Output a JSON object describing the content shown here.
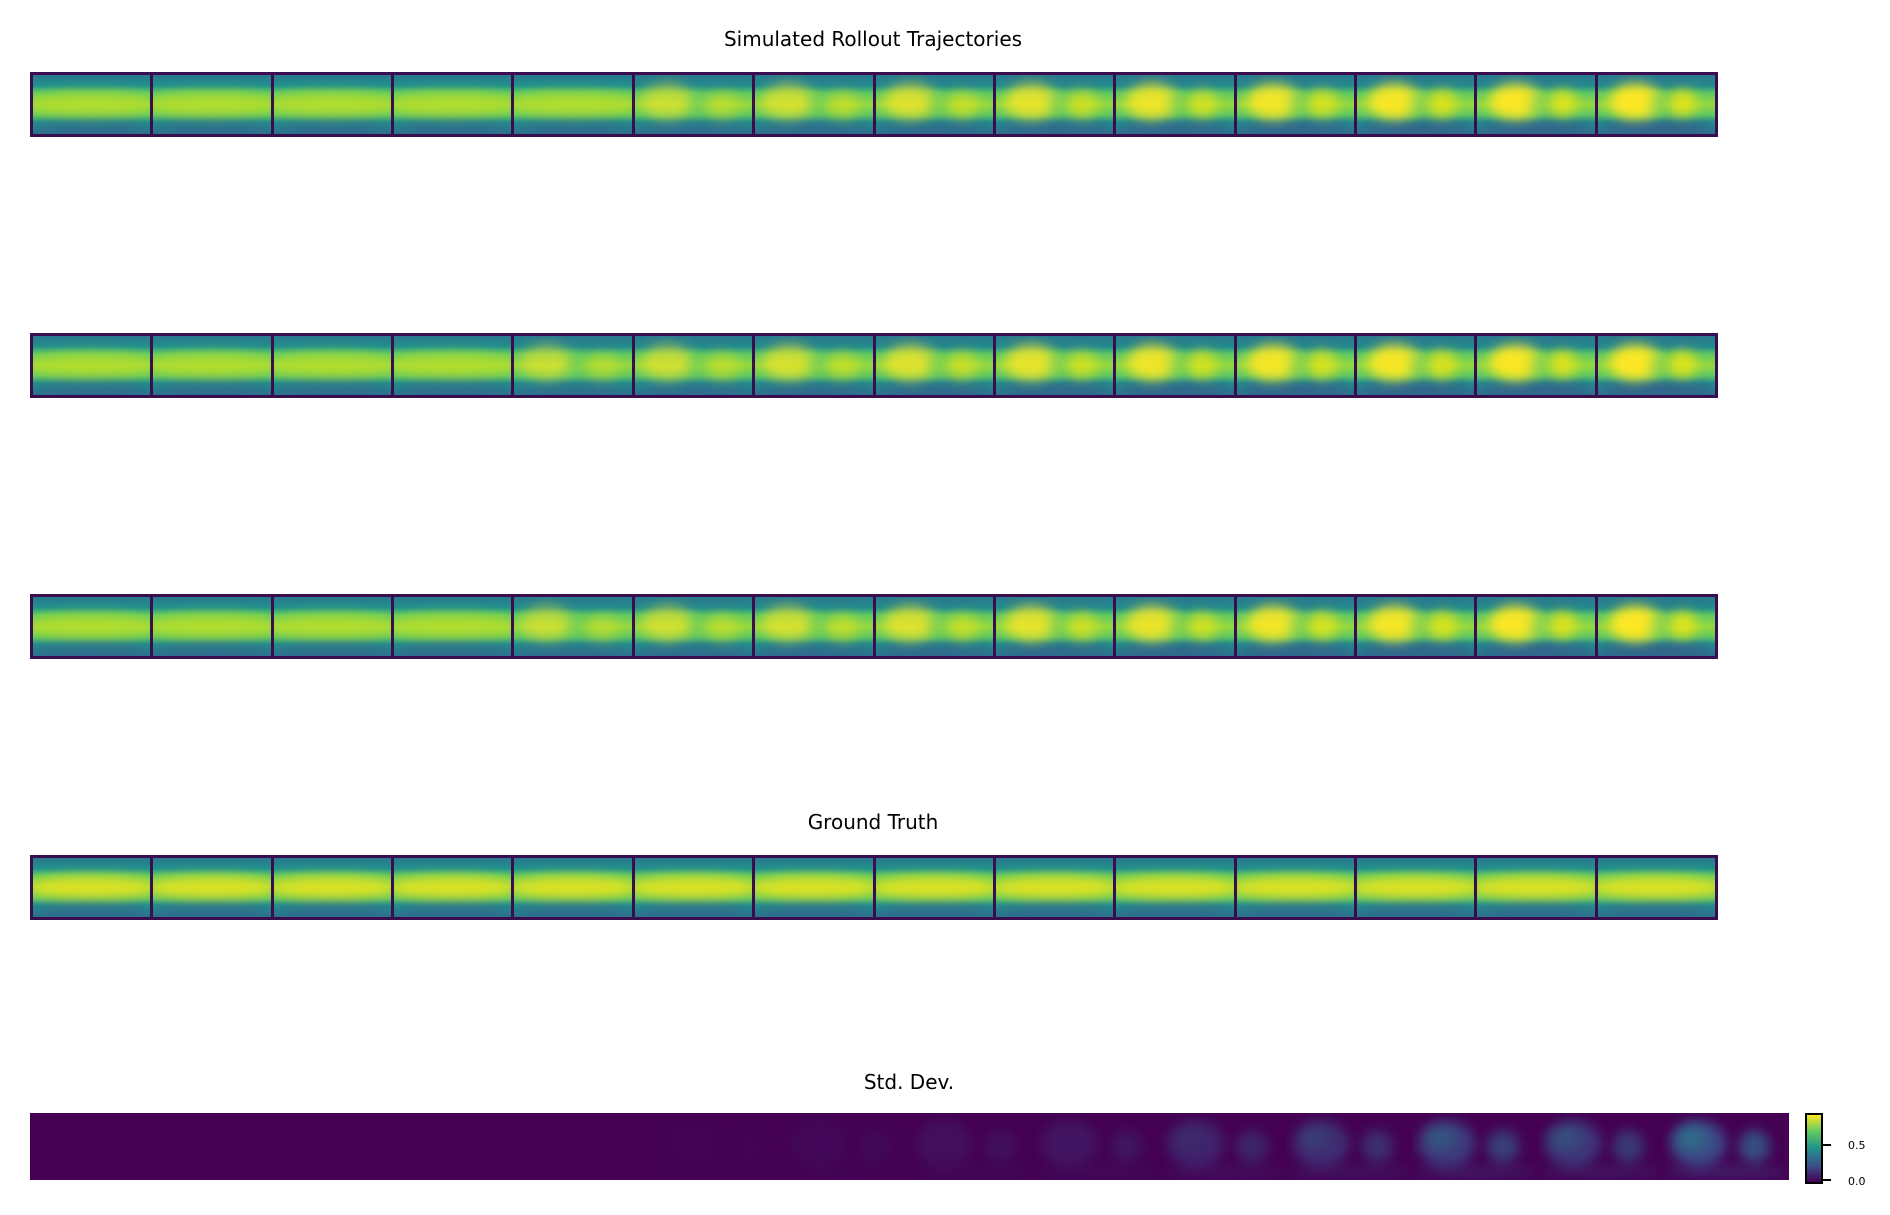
{
  "chart_data": {
    "type": "heatmap",
    "colormap": "viridis",
    "frames_per_row": 14,
    "panels": [
      {
        "title": "Simulated Rollout Trajectories",
        "kind": "rollout",
        "divergence": [
          0,
          0,
          0,
          0,
          0,
          0.1,
          0.25,
          0.4,
          0.55,
          0.7,
          0.8,
          0.9,
          0.95,
          1.0
        ]
      },
      {
        "title": "",
        "kind": "rollout",
        "divergence": [
          0,
          0,
          0,
          0,
          0.05,
          0.15,
          0.3,
          0.45,
          0.6,
          0.75,
          0.85,
          0.9,
          0.95,
          1.0
        ]
      },
      {
        "title": "",
        "kind": "rollout",
        "divergence": [
          0,
          0,
          0,
          0,
          0.05,
          0.15,
          0.25,
          0.4,
          0.55,
          0.65,
          0.8,
          0.85,
          0.95,
          1.0
        ]
      },
      {
        "title": "Ground Truth",
        "kind": "truth",
        "divergence": [
          0,
          0,
          0,
          0,
          0,
          0,
          0,
          0,
          0,
          0,
          0,
          0,
          0,
          0
        ]
      }
    ],
    "std_dev": {
      "title": "Std. Dev.",
      "frames": 14,
      "intensity": [
        0,
        0,
        0,
        0,
        0,
        0.03,
        0.08,
        0.15,
        0.2,
        0.35,
        0.45,
        0.6,
        0.55,
        0.75
      ]
    },
    "colorbar": {
      "ticks": [
        "0.0",
        "0.5"
      ],
      "tick_values": [
        0.0,
        0.5
      ],
      "range": [
        0,
        0.9
      ]
    }
  }
}
